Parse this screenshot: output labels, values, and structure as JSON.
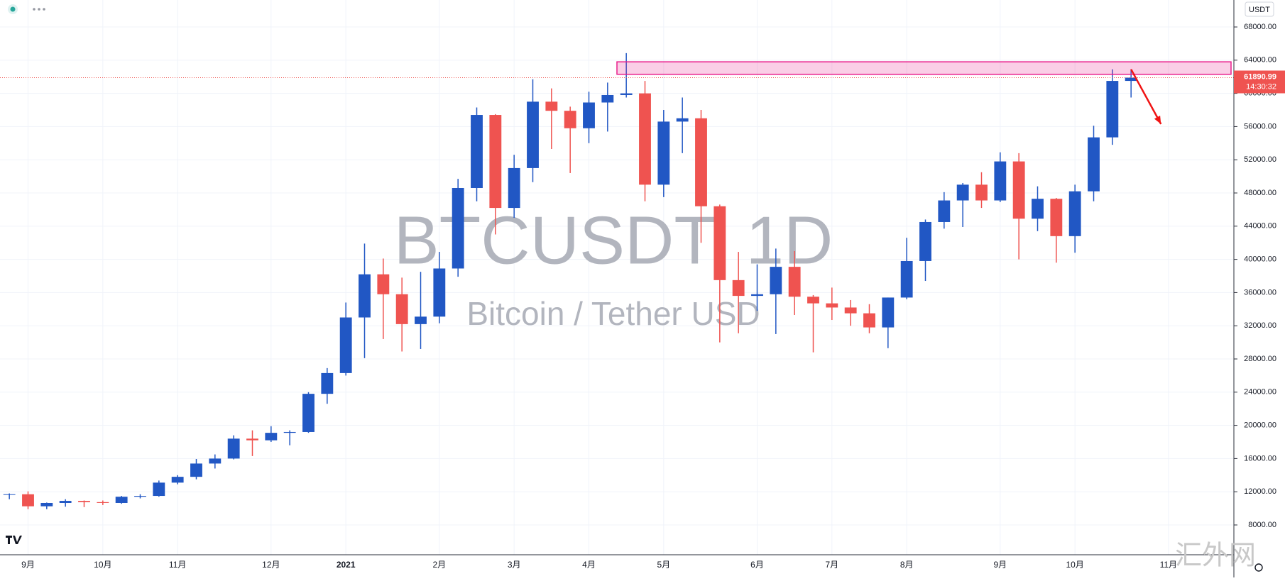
{
  "chart_data": {
    "type": "candlestick",
    "title": "BTCUSDT, 1D",
    "subtitle": "Bitcoin / Tether USD",
    "currency": "USDT",
    "countdown": "14:30:32",
    "watermark": "汇外网",
    "up_color": "#2157c4",
    "down_color": "#ef5350",
    "categories": [
      null,
      "9月",
      null,
      null,
      null,
      "10月",
      null,
      null,
      null,
      "11月",
      null,
      null,
      null,
      null,
      "12月",
      null,
      null,
      null,
      "2021",
      null,
      null,
      null,
      null,
      "2月",
      null,
      null,
      null,
      "3月",
      null,
      null,
      null,
      "4月",
      null,
      null,
      null,
      "5月",
      null,
      null,
      null,
      null,
      "6月",
      null,
      null,
      null,
      "7月",
      null,
      null,
      null,
      "8月",
      null,
      null,
      null,
      null,
      "9月",
      null,
      null,
      null,
      "10月",
      null,
      null,
      null,
      null,
      "11月",
      null,
      null,
      null
    ],
    "open": [
      11650,
      11700,
      10250,
      10650,
      10900,
      10750,
      10650,
      11400,
      11500,
      13100,
      13800,
      15400,
      16000,
      18400,
      18200,
      19100,
      19200,
      23800,
      26300,
      33000,
      38200,
      35800,
      32200,
      33100,
      38900,
      48600,
      57400,
      46200,
      51000,
      59000,
      57900,
      55800,
      58900,
      59800,
      60000,
      49000,
      56600,
      57000,
      46400,
      37500,
      35600,
      35800,
      39100,
      35500,
      34700,
      34200,
      33500,
      31800,
      35400,
      39800,
      44500,
      47100,
      49000,
      47100,
      51800,
      44900,
      47300,
      42800,
      48200,
      54700,
      61500,
      null,
      null,
      null,
      null,
      null
    ],
    "high": [
      11800,
      12050,
      10700,
      11100,
      10950,
      10950,
      11500,
      11700,
      13350,
      14000,
      15950,
      16500,
      18800,
      19400,
      19900,
      19400,
      24000,
      26900,
      34800,
      41900,
      40100,
      37800,
      38500,
      40900,
      49700,
      58300,
      57500,
      52600,
      61700,
      60600,
      58400,
      60200,
      61300,
      64850,
      61500,
      58000,
      59500,
      58000,
      46600,
      40900,
      39400,
      41300,
      41000,
      35700,
      36600,
      35100,
      34600,
      35400,
      42600,
      44800,
      48100,
      49200,
      50500,
      52900,
      52800,
      48800,
      47400,
      49000,
      56100,
      62900,
      62900,
      null,
      null,
      null,
      null,
      null
    ],
    "low": [
      11100,
      9900,
      9900,
      10200,
      10150,
      10400,
      10550,
      11200,
      11400,
      12900,
      13500,
      14800,
      15900,
      16300,
      18000,
      17600,
      19100,
      22600,
      26000,
      28100,
      30400,
      28900,
      29200,
      32300,
      37900,
      47000,
      43000,
      45000,
      49300,
      53300,
      50400,
      54000,
      55400,
      59500,
      47000,
      47500,
      52800,
      42000,
      30000,
      31100,
      33800,
      31000,
      33300,
      28800,
      32700,
      32000,
      31100,
      29300,
      35200,
      37400,
      43700,
      43900,
      46200,
      46900,
      40000,
      43400,
      39600,
      40800,
      47000,
      53800,
      59500,
      null,
      null,
      null,
      null,
      null
    ],
    "close": [
      11700,
      10250,
      10650,
      10900,
      10750,
      10650,
      11400,
      11500,
      13100,
      13800,
      15400,
      16000,
      18400,
      18200,
      19100,
      19200,
      23800,
      26300,
      33000,
      38200,
      35800,
      32200,
      33100,
      38900,
      48600,
      57400,
      46200,
      51000,
      59000,
      57900,
      55800,
      58900,
      59800,
      60000,
      49000,
      56600,
      57000,
      46400,
      37500,
      35600,
      35800,
      39100,
      35500,
      34700,
      34200,
      33500,
      31800,
      35400,
      39800,
      44500,
      47100,
      49000,
      47100,
      51800,
      44900,
      47300,
      42800,
      48200,
      54700,
      61500,
      61890.99,
      null,
      null,
      null,
      null,
      null
    ],
    "zone": [
      62300,
      63800
    ],
    "zone_color": "#e91e8c",
    "arrow": [
      62900,
      56300
    ],
    "arrow_color": "#f01414",
    "ylim": [
      4410,
      71250
    ],
    "yticks": [
      {
        "value": 8000,
        "label": "8000.00"
      },
      {
        "value": 12000,
        "label": "12000.00"
      },
      {
        "value": 16000,
        "label": "16000.00"
      },
      {
        "value": 20000,
        "label": "20000.00"
      },
      {
        "value": 24000,
        "label": "24000.00"
      },
      {
        "value": 28000,
        "label": "28000.00"
      },
      {
        "value": 32000,
        "label": "32000.00"
      },
      {
        "value": 36000,
        "label": "36000.00"
      },
      {
        "value": 40000,
        "label": "40000.00"
      },
      {
        "value": 44000,
        "label": "44000.00"
      },
      {
        "value": 48000,
        "label": "48000.00"
      },
      {
        "value": 52000,
        "label": "52000.00"
      },
      {
        "value": 56000,
        "label": "56000.00"
      },
      {
        "value": 60000,
        "label": "60000.00"
      },
      {
        "value": 64000,
        "label": "64000.00"
      },
      {
        "value": 68000,
        "label": "68000.00"
      }
    ],
    "grid": true
  }
}
